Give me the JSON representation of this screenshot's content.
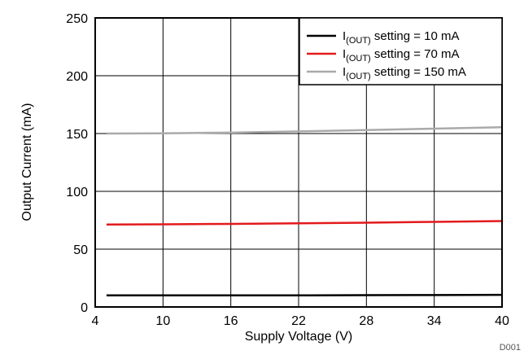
{
  "chart_data": {
    "type": "line",
    "xlabel": "Supply Voltage (V)",
    "ylabel": "Output Current (mA)",
    "xlim": [
      4,
      40
    ],
    "ylim": [
      0,
      250
    ],
    "x_ticks": [
      4,
      10,
      16,
      22,
      28,
      34,
      40
    ],
    "y_ticks": [
      0,
      50,
      100,
      150,
      200,
      250
    ],
    "grid": true,
    "legend_position": "top-right",
    "figure_id": "D001",
    "series": [
      {
        "label_prefix": "I",
        "label_sub": "(OUT)",
        "label_suffix": " setting = 10 mA",
        "color": "#000000",
        "x": [
          5,
          10,
          16,
          22,
          28,
          34,
          40
        ],
        "values": [
          10,
          10,
          10,
          10,
          10.2,
          10.3,
          10.5
        ]
      },
      {
        "label_prefix": "I",
        "label_sub": "(OUT)",
        "label_suffix": " setting = 70 mA",
        "color": "#e31a1c",
        "x": [
          5,
          10,
          16,
          22,
          28,
          34,
          40
        ],
        "values": [
          71.3,
          71.5,
          71.8,
          72.3,
          72.9,
          73.6,
          74.3
        ]
      },
      {
        "label_prefix": "I",
        "label_sub": "(OUT)",
        "label_suffix": " setting = 150 mA",
        "color": "#aaaaaa",
        "x": [
          5,
          10,
          16,
          22,
          28,
          34,
          40
        ],
        "values": [
          150,
          150.2,
          150.8,
          151.8,
          153,
          154.2,
          155.5
        ]
      }
    ]
  }
}
